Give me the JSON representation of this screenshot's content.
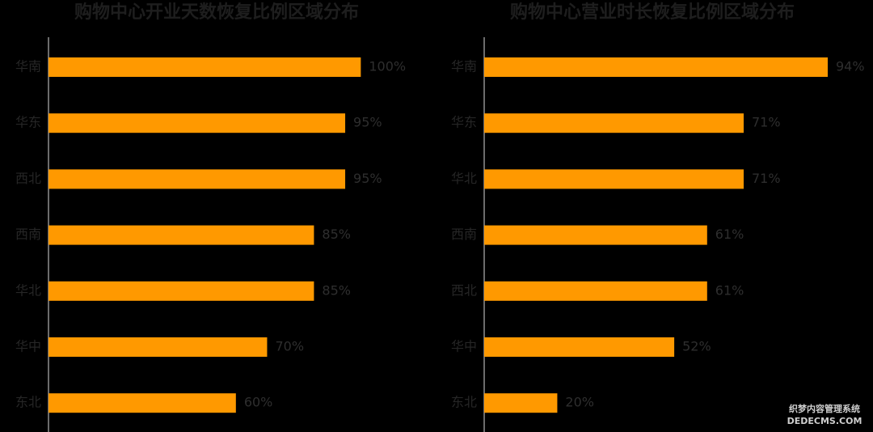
{
  "chart_data": [
    {
      "type": "bar",
      "orientation": "horizontal",
      "title": "购物中心开业天数恢复比例区域分布",
      "categories": [
        "华南",
        "华东",
        "西北",
        "西南",
        "华北",
        "华中",
        "东北"
      ],
      "values": [
        100,
        95,
        95,
        85,
        85,
        70,
        60
      ],
      "value_labels": [
        "100%",
        "95%",
        "95%",
        "85%",
        "85%",
        "70%",
        "60%"
      ],
      "color": "#ff9900",
      "xlim": [
        0,
        110
      ]
    },
    {
      "type": "bar",
      "orientation": "horizontal",
      "title": "购物中心营业时长恢复比例区域分布",
      "categories": [
        "华南",
        "华东",
        "华北",
        "西南",
        "西北",
        "华中",
        "东北"
      ],
      "values": [
        94,
        71,
        71,
        61,
        61,
        52,
        20
      ],
      "value_labels": [
        "94%",
        "71%",
        "71%",
        "61%",
        "61%",
        "52%",
        "20%"
      ],
      "color": "#ff9900",
      "xlim": [
        0,
        94
      ]
    }
  ],
  "watermark": {
    "line1": "织梦内容管理系统",
    "line2": "DEDECMS.COM"
  }
}
